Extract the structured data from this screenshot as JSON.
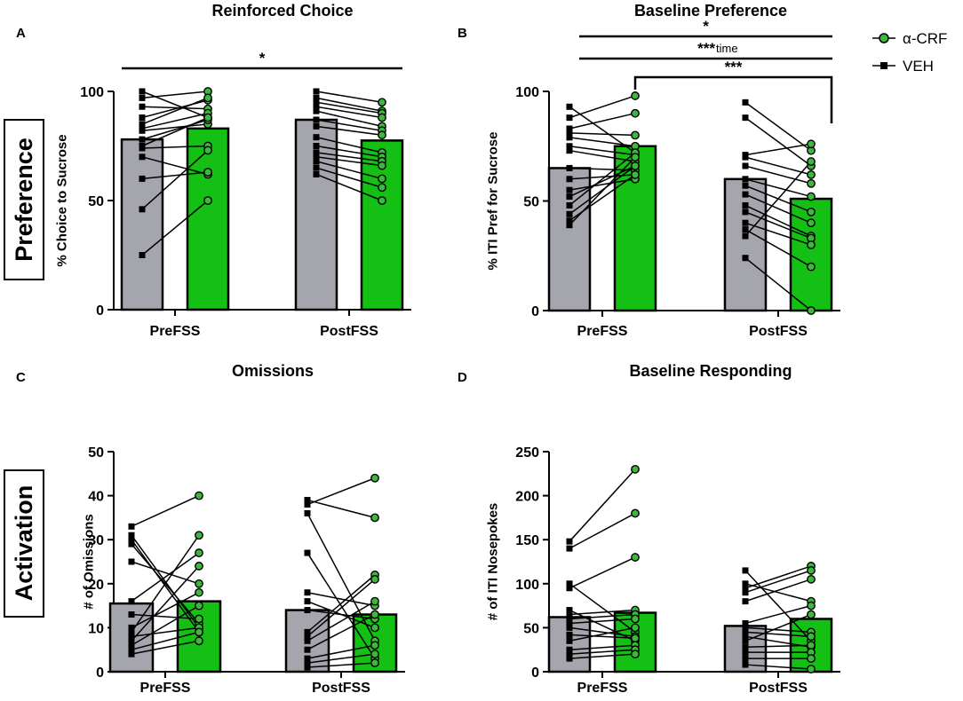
{
  "legend": {
    "items": [
      {
        "label": "α-CRF",
        "marker": "circle",
        "color": "#13c013"
      },
      {
        "label": "VEH",
        "marker": "square",
        "color": "#000000"
      }
    ]
  },
  "row_labels": [
    "Preference",
    "Activation"
  ],
  "colors": {
    "veh_bar": "#a5a5ae",
    "crf_bar": "#13c013",
    "crf_point": "#3cb83c",
    "line": "#000000"
  },
  "chart_data": [
    {
      "id": "A",
      "letter": "A",
      "type": "bar",
      "title": "Reinforced Choice",
      "ylabel": "% Choice to Sucrose",
      "ylim": [
        0,
        100
      ],
      "yticks": [
        0,
        50,
        100
      ],
      "categories": [
        "PreFSS",
        "PostFSS"
      ],
      "series": [
        {
          "name": "VEH",
          "values": [
            78,
            87
          ]
        },
        {
          "name": "α-CRF",
          "values": [
            83,
            77.5
          ]
        }
      ],
      "pairs": {
        "PreFSS": [
          [
            100,
            88
          ],
          [
            97,
            100
          ],
          [
            93,
            92
          ],
          [
            88,
            96
          ],
          [
            85,
            97
          ],
          [
            83,
            90
          ],
          [
            82,
            85
          ],
          [
            78,
            87
          ],
          [
            75,
            88
          ],
          [
            74,
            75
          ],
          [
            70,
            62
          ],
          [
            60,
            63
          ],
          [
            46,
            73
          ],
          [
            25,
            50
          ]
        ],
        "PostFSS": [
          [
            100,
            95
          ],
          [
            97,
            91
          ],
          [
            95,
            90
          ],
          [
            93,
            88
          ],
          [
            91,
            84
          ],
          [
            87,
            82
          ],
          [
            84,
            80
          ],
          [
            79,
            72
          ],
          [
            75,
            70
          ],
          [
            72,
            68
          ],
          [
            70,
            66
          ],
          [
            68,
            60
          ],
          [
            65,
            56
          ],
          [
            62,
            50
          ]
        ]
      },
      "significance": [
        {
          "label": "*",
          "from": "PreFSS",
          "to": "PostFSS",
          "level": 1
        }
      ]
    },
    {
      "id": "B",
      "letter": "B",
      "type": "bar",
      "title": "Baseline Preference",
      "ylabel": "% ITI Pref for Sucrose",
      "ylim": [
        0,
        100
      ],
      "yticks": [
        0,
        50,
        100
      ],
      "categories": [
        "PreFSS",
        "PostFSS"
      ],
      "series": [
        {
          "name": "VEH",
          "values": [
            65,
            60
          ]
        },
        {
          "name": "α-CRF",
          "values": [
            75,
            51
          ]
        }
      ],
      "pairs": {
        "PreFSS": [
          [
            93,
            72
          ],
          [
            88,
            98
          ],
          [
            83,
            90
          ],
          [
            81,
            80
          ],
          [
            79,
            75
          ],
          [
            75,
            71
          ],
          [
            73,
            68
          ],
          [
            65,
            64
          ],
          [
            60,
            62
          ],
          [
            55,
            60
          ],
          [
            52,
            66
          ],
          [
            48,
            72
          ],
          [
            44,
            66
          ],
          [
            41,
            62
          ],
          [
            39,
            70
          ]
        ],
        "PostFSS": [
          [
            95,
            73
          ],
          [
            88,
            66
          ],
          [
            71,
            76
          ],
          [
            70,
            62
          ],
          [
            66,
            58
          ],
          [
            60,
            52
          ],
          [
            57,
            45
          ],
          [
            53,
            40
          ],
          [
            48,
            34
          ],
          [
            45,
            33
          ],
          [
            40,
            30
          ],
          [
            37,
            20
          ],
          [
            34,
            68
          ],
          [
            24,
            0
          ]
        ]
      },
      "significance": [
        {
          "label": "*",
          "type": "full",
          "level": 1
        },
        {
          "label": "***",
          "suffix": "time",
          "type": "full",
          "level": 2
        },
        {
          "label": "***",
          "type": "crf-bracket",
          "level": 3
        }
      ]
    },
    {
      "id": "C",
      "letter": "C",
      "type": "bar",
      "title": "Omissions",
      "ylabel": "# of Omissions",
      "ylim": [
        0,
        50
      ],
      "yticks": [
        0,
        10,
        20,
        30,
        40,
        50
      ],
      "categories": [
        "PreFSS",
        "PostFSS"
      ],
      "series": [
        {
          "name": "VEH",
          "values": [
            15.5,
            14
          ]
        },
        {
          "name": "α-CRF",
          "values": [
            16,
            13
          ]
        }
      ],
      "pairs": {
        "PreFSS": [
          [
            33,
            40
          ],
          [
            31,
            10
          ],
          [
            30,
            9
          ],
          [
            29,
            11
          ],
          [
            25,
            20
          ],
          [
            16,
            27
          ],
          [
            13,
            12
          ],
          [
            10,
            18
          ],
          [
            9,
            31
          ],
          [
            8,
            10
          ],
          [
            7,
            24
          ],
          [
            6,
            15
          ],
          [
            5,
            9
          ],
          [
            4,
            7
          ]
        ],
        "PostFSS": [
          [
            39,
            35
          ],
          [
            38,
            44
          ],
          [
            36,
            7
          ],
          [
            27,
            3
          ],
          [
            18,
            15
          ],
          [
            16,
            10
          ],
          [
            14,
            12
          ],
          [
            9,
            22
          ],
          [
            8,
            21
          ],
          [
            7,
            16
          ],
          [
            5,
            13
          ],
          [
            3,
            6
          ],
          [
            2,
            4
          ],
          [
            1,
            2
          ]
        ]
      },
      "significance": []
    },
    {
      "id": "D",
      "letter": "D",
      "type": "bar",
      "title": "Baseline Responding",
      "ylabel": "# of ITI Nosepokes",
      "ylim": [
        0,
        250
      ],
      "yticks": [
        0,
        50,
        100,
        150,
        200,
        250
      ],
      "categories": [
        "PreFSS",
        "PostFSS"
      ],
      "series": [
        {
          "name": "VEH",
          "values": [
            62,
            52
          ]
        },
        {
          "name": "α-CRF",
          "values": [
            67,
            60
          ]
        }
      ],
      "pairs": {
        "PreFSS": [
          [
            148,
            230
          ],
          [
            140,
            180
          ],
          [
            100,
            45
          ],
          [
            95,
            130
          ],
          [
            70,
            35
          ],
          [
            65,
            70
          ],
          [
            60,
            65
          ],
          [
            55,
            60
          ],
          [
            50,
            40
          ],
          [
            42,
            38
          ],
          [
            35,
            50
          ],
          [
            25,
            30
          ],
          [
            20,
            25
          ],
          [
            15,
            20
          ]
        ],
        "PostFSS": [
          [
            115,
            35
          ],
          [
            100,
            80
          ],
          [
            95,
            120
          ],
          [
            90,
            115
          ],
          [
            80,
            105
          ],
          [
            55,
            75
          ],
          [
            50,
            45
          ],
          [
            45,
            40
          ],
          [
            40,
            28
          ],
          [
            35,
            65
          ],
          [
            28,
            30
          ],
          [
            22,
            22
          ],
          [
            15,
            15
          ],
          [
            8,
            3
          ]
        ]
      },
      "significance": []
    }
  ]
}
